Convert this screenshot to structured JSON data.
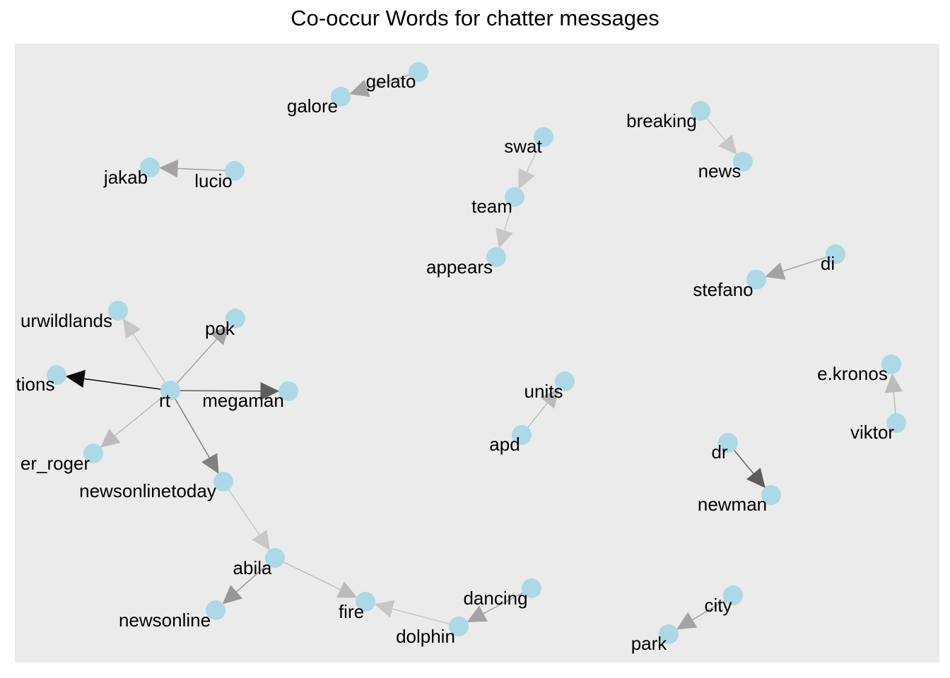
{
  "title": "Co-occur Words for chatter messages",
  "colors": {
    "panel_background": "#ebebeb",
    "node_fill": "#add8e6",
    "edge_color": "#000000",
    "label_color": "#000000"
  },
  "nodes": [
    {
      "id": "gelato",
      "label": "gelato"
    },
    {
      "id": "galore",
      "label": "galore"
    },
    {
      "id": "breaking",
      "label": "breaking"
    },
    {
      "id": "news",
      "label": "news"
    },
    {
      "id": "swat",
      "label": "swat"
    },
    {
      "id": "team",
      "label": "team"
    },
    {
      "id": "appears",
      "label": "appears"
    },
    {
      "id": "lucio",
      "label": "lucio"
    },
    {
      "id": "jakab",
      "label": "jakab"
    },
    {
      "id": "di",
      "label": "di"
    },
    {
      "id": "stefano",
      "label": "stefano"
    },
    {
      "id": "urwildlands",
      "label": "urwildlands"
    },
    {
      "id": "pok",
      "label": "pok"
    },
    {
      "id": "tions",
      "label": "tions"
    },
    {
      "id": "rt",
      "label": "rt"
    },
    {
      "id": "megaman",
      "label": "megaman"
    },
    {
      "id": "er_roger",
      "label": "er_roger"
    },
    {
      "id": "newsonlinetoday",
      "label": "newsonlinetoday"
    },
    {
      "id": "units",
      "label": "units"
    },
    {
      "id": "apd",
      "label": "apd"
    },
    {
      "id": "e.kronos",
      "label": "e.kronos"
    },
    {
      "id": "viktor",
      "label": "viktor"
    },
    {
      "id": "dr",
      "label": "dr"
    },
    {
      "id": "newman",
      "label": "newman"
    },
    {
      "id": "abila",
      "label": "abila"
    },
    {
      "id": "newsonline",
      "label": "newsonline"
    },
    {
      "id": "fire",
      "label": "fire"
    },
    {
      "id": "dancing",
      "label": "dancing"
    },
    {
      "id": "dolphin",
      "label": "dolphin"
    },
    {
      "id": "city",
      "label": "city"
    },
    {
      "id": "park",
      "label": "park"
    }
  ],
  "edges": [
    {
      "from": "gelato",
      "to": "galore",
      "weight": 0.3
    },
    {
      "from": "breaking",
      "to": "news",
      "weight": 0.15
    },
    {
      "from": "swat",
      "to": "team",
      "weight": 0.15
    },
    {
      "from": "team",
      "to": "appears",
      "weight": 0.15
    },
    {
      "from": "lucio",
      "to": "jakab",
      "weight": 0.3
    },
    {
      "from": "di",
      "to": "stefano",
      "weight": 0.3
    },
    {
      "from": "rt",
      "to": "urwildlands",
      "weight": 0.15
    },
    {
      "from": "rt",
      "to": "pok",
      "weight": 0.3
    },
    {
      "from": "rt",
      "to": "tions",
      "weight": 0.95
    },
    {
      "from": "rt",
      "to": "megaman",
      "weight": 0.6
    },
    {
      "from": "rt",
      "to": "er_roger",
      "weight": 0.2
    },
    {
      "from": "rt",
      "to": "newsonlinetoday",
      "weight": 0.45
    },
    {
      "from": "newsonlinetoday",
      "to": "abila",
      "weight": 0.15
    },
    {
      "from": "apd",
      "to": "units",
      "weight": 0.2
    },
    {
      "from": "viktor",
      "to": "e.kronos",
      "weight": 0.2
    },
    {
      "from": "dr",
      "to": "newman",
      "weight": 0.6
    },
    {
      "from": "abila",
      "to": "newsonline",
      "weight": 0.35
    },
    {
      "from": "abila",
      "to": "fire",
      "weight": 0.2
    },
    {
      "from": "dolphin",
      "to": "fire",
      "weight": 0.15
    },
    {
      "from": "dancing",
      "to": "dolphin",
      "weight": 0.3
    },
    {
      "from": "city",
      "to": "park",
      "weight": 0.3
    }
  ]
}
